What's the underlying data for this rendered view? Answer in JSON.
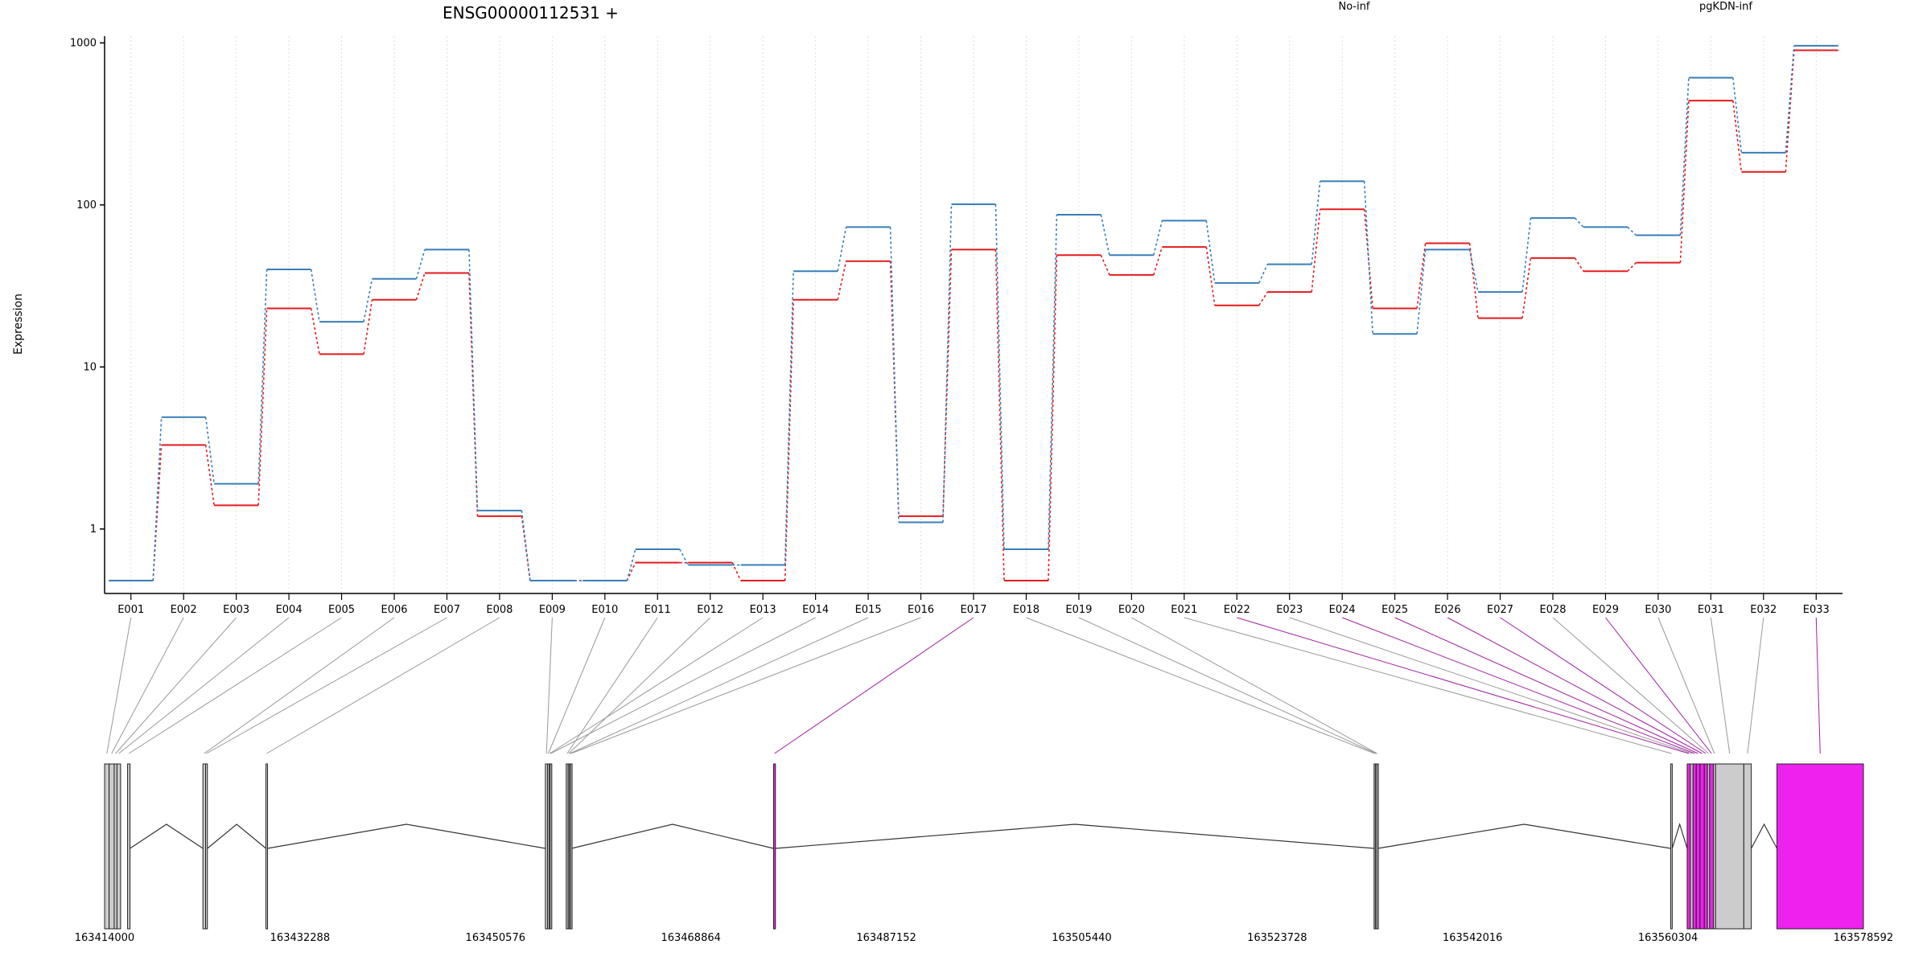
{
  "title": "ENSG00000112531 +",
  "colors": {
    "no_inf": "#e41a1c",
    "pgkdn_inf": "#377eb8",
    "exon_grey": "#cccccc",
    "exon_magenta": "#ee22ee",
    "link_grey": "#999999",
    "link_magenta": "#a020a0",
    "grid": "#dddddd"
  },
  "chart_data": {
    "type": "line",
    "title": "ENSG00000112531 +",
    "ylabel": "Expression",
    "yscale": "log",
    "yticks": [
      1,
      10,
      100,
      1000
    ],
    "ytick_labels": [
      "1",
      "10",
      "100",
      "1000"
    ],
    "ylim": [
      0.4,
      1100
    ],
    "grid": "vertical dotted",
    "legend_placement": "top",
    "categories": [
      "E001",
      "E002",
      "E003",
      "E004",
      "E005",
      "E006",
      "E007",
      "E008",
      "E009",
      "E010",
      "E011",
      "E012",
      "E013",
      "E014",
      "E015",
      "E016",
      "E017",
      "E018",
      "E019",
      "E020",
      "E021",
      "E022",
      "E023",
      "E024",
      "E025",
      "E026",
      "E027",
      "E028",
      "E029",
      "E030",
      "E031",
      "E032",
      "E033"
    ],
    "series": [
      {
        "name": "No-inf",
        "color": "#e41a1c",
        "values": [
          0.48,
          3.3,
          1.4,
          23,
          12,
          26,
          38,
          1.2,
          0.48,
          0.48,
          0.62,
          0.62,
          0.48,
          26,
          45,
          1.2,
          53,
          0.48,
          49,
          37,
          55,
          24,
          29,
          94,
          23,
          58,
          20,
          47,
          39,
          44,
          440,
          160,
          900
        ]
      },
      {
        "name": "pgKDN-inf",
        "color": "#377eb8",
        "values": [
          0.48,
          4.9,
          1.9,
          40,
          19,
          35,
          53,
          1.3,
          0.48,
          0.48,
          0.75,
          0.6,
          0.6,
          39,
          73,
          1.1,
          101,
          0.75,
          87,
          49,
          80,
          33,
          43,
          140,
          16,
          53,
          29,
          83,
          73,
          65,
          610,
          210,
          960
        ]
      }
    ]
  },
  "gene_model": {
    "coord_start": 163414000,
    "coord_end": 163578592,
    "axis_tick_values": [
      163414000,
      163432288,
      163450576,
      163468864,
      163487152,
      163505440,
      163523728,
      163542016,
      163560304,
      163578592
    ],
    "axis_tick_labels": [
      "163414000",
      "163432288",
      "163450576",
      "163468864",
      "163487152",
      "163505440",
      "163523728",
      "163542016",
      "163560304",
      "163578592"
    ],
    "exons": [
      {
        "id": "E001",
        "start": 163414000,
        "end": 163414420,
        "highlight": false
      },
      {
        "id": "E002",
        "start": 163414420,
        "end": 163414900,
        "highlight": false
      },
      {
        "id": "E003",
        "start": 163414900,
        "end": 163415160,
        "highlight": false
      },
      {
        "id": "E004",
        "start": 163415160,
        "end": 163415500,
        "highlight": false
      },
      {
        "id": "E005",
        "start": 163416150,
        "end": 163416380,
        "highlight": false
      },
      {
        "id": "E006",
        "start": 163423200,
        "end": 163423450,
        "highlight": false
      },
      {
        "id": "E007",
        "start": 163423450,
        "end": 163423620,
        "highlight": false
      },
      {
        "id": "E008",
        "start": 163429100,
        "end": 163429230,
        "highlight": false
      },
      {
        "id": "E009",
        "start": 163455250,
        "end": 163455450,
        "highlight": false
      },
      {
        "id": "E010",
        "start": 163455450,
        "end": 163455600,
        "highlight": false
      },
      {
        "id": "E011",
        "start": 163457200,
        "end": 163457380,
        "highlight": false
      },
      {
        "id": "E012",
        "start": 163457380,
        "end": 163457500,
        "highlight": false
      },
      {
        "id": "E013",
        "start": 163455600,
        "end": 163455700,
        "highlight": false
      },
      {
        "id": "E014",
        "start": 163455700,
        "end": 163455800,
        "highlight": false
      },
      {
        "id": "E015",
        "start": 163457500,
        "end": 163457600,
        "highlight": false
      },
      {
        "id": "E016",
        "start": 163457600,
        "end": 163457700,
        "highlight": false
      },
      {
        "id": "E017",
        "start": 163476600,
        "end": 163476780,
        "highlight": true
      },
      {
        "id": "E018",
        "start": 163532800,
        "end": 163532920,
        "highlight": false
      },
      {
        "id": "E019",
        "start": 163532920,
        "end": 163533050,
        "highlight": false
      },
      {
        "id": "E020",
        "start": 163533050,
        "end": 163533140,
        "highlight": false
      },
      {
        "id": "E021",
        "start": 163560550,
        "end": 163560700,
        "highlight": false
      },
      {
        "id": "E022",
        "start": 163562100,
        "end": 163562400,
        "highlight": true
      },
      {
        "id": "E023",
        "start": 163562400,
        "end": 163562650,
        "highlight": false
      },
      {
        "id": "E024",
        "start": 163562650,
        "end": 163562950,
        "highlight": true
      },
      {
        "id": "E025",
        "start": 163562950,
        "end": 163563300,
        "highlight": true
      },
      {
        "id": "E026",
        "start": 163563300,
        "end": 163563700,
        "highlight": true
      },
      {
        "id": "E027",
        "start": 163563700,
        "end": 163564000,
        "highlight": true
      },
      {
        "id": "E028",
        "start": 163564000,
        "end": 163564200,
        "highlight": false
      },
      {
        "id": "E029",
        "start": 163564200,
        "end": 163564550,
        "highlight": true
      },
      {
        "id": "E030",
        "start": 163564550,
        "end": 163564750,
        "highlight": false
      },
      {
        "id": "E031",
        "start": 163564750,
        "end": 163567400,
        "highlight": false
      },
      {
        "id": "E032",
        "start": 163567400,
        "end": 163568100,
        "highlight": false
      },
      {
        "id": "E033",
        "start": 163570500,
        "end": 163578592,
        "highlight": true
      }
    ],
    "introns": [
      [
        163416380,
        163423200
      ],
      [
        163423620,
        163429100
      ],
      [
        163429230,
        163455250
      ],
      [
        163457700,
        163476600
      ],
      [
        163476780,
        163532800
      ],
      [
        163533140,
        163560550
      ],
      [
        163560700,
        163562100
      ],
      [
        163568100,
        163570500
      ]
    ]
  }
}
